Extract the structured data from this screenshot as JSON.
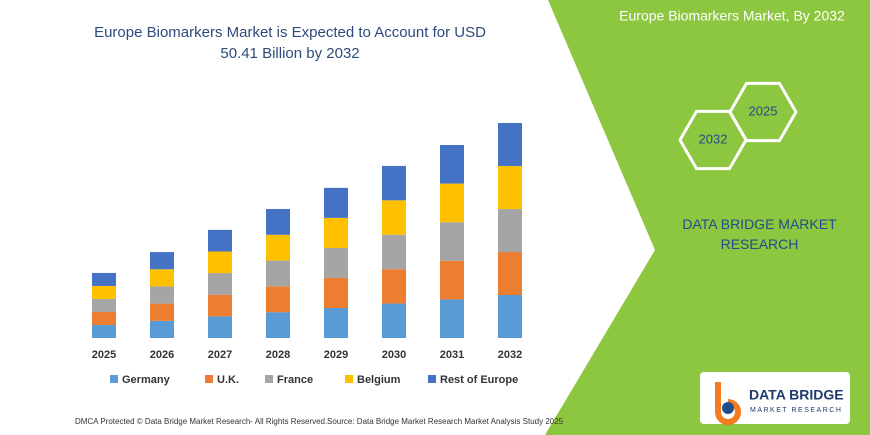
{
  "chart_data": {
    "type": "bar",
    "stacked": true,
    "title": "Europe Biomarkers Market is Expected to Account for USD 50.41 Billion by 2032",
    "categories": [
      "2025",
      "2026",
      "2027",
      "2028",
      "2029",
      "2030",
      "2031",
      "2032"
    ],
    "series": [
      {
        "name": "Germany",
        "color": "#5b9bd5",
        "values": [
          3.05,
          4.03,
          5.07,
          6.05,
          7.04,
          8.07,
          9.05,
          10.08
        ]
      },
      {
        "name": "U.K.",
        "color": "#ed7d31",
        "values": [
          3.05,
          4.03,
          5.07,
          6.05,
          7.04,
          8.07,
          9.05,
          10.08
        ]
      },
      {
        "name": "France",
        "color": "#a5a5a5",
        "values": [
          3.05,
          4.03,
          5.07,
          6.05,
          7.04,
          8.07,
          9.05,
          10.08
        ]
      },
      {
        "name": "Belgium",
        "color": "#ffc000",
        "values": [
          3.05,
          4.03,
          5.07,
          6.05,
          7.04,
          8.07,
          9.05,
          10.08
        ]
      },
      {
        "name": "Rest of Europe",
        "color": "#4472c4",
        "values": [
          3.05,
          4.03,
          5.07,
          6.05,
          7.04,
          8.07,
          9.05,
          10.09
        ]
      }
    ]
  },
  "panel": {
    "title": "Europe Biomarkers Market, By 2032",
    "hexagons": [
      "2032",
      "2025"
    ],
    "brand": "DATA BRIDGE MARKET RESEARCH"
  },
  "logo": {
    "name": "DATA BRIDGE",
    "tagline": "MARKET RESEARCH"
  },
  "footer": {
    "left": "DMCA Protected © Data Bridge Market Research- All Rights Reserved.",
    "right": "Source: Data Bridge Market Research Market Analysis Study 2025"
  }
}
